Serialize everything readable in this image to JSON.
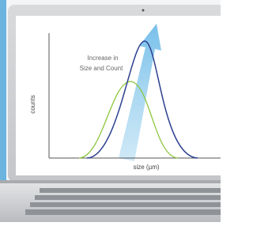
{
  "screen": {
    "annotation": [
      "Increase in",
      "Size and Count"
    ],
    "y_axis_label": "counts",
    "x_axis_label": "size (µm)"
  }
}
